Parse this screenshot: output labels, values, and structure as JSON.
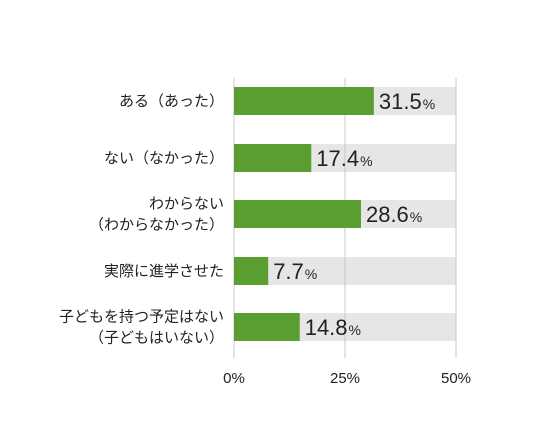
{
  "chart_data": {
    "type": "bar",
    "orientation": "horizontal",
    "categories": [
      [
        "ある（あった）"
      ],
      [
        "ない（なかった）"
      ],
      [
        "わからない",
        "（わからなかった）"
      ],
      [
        "実際に進学させた"
      ],
      [
        "子どもを持つ予定はない",
        "（子どもはいない）"
      ]
    ],
    "values": [
      31.5,
      17.4,
      28.6,
      7.7,
      14.8
    ],
    "value_labels": [
      "31.5",
      "17.4",
      "28.6",
      "7.7",
      "14.8"
    ],
    "value_unit": "%",
    "xlim": [
      0,
      50
    ],
    "x_ticks": [
      "0%",
      "25%",
      "50%"
    ],
    "x_tick_values": [
      0,
      25,
      50
    ],
    "bar_color": "#5a9e32",
    "track_color": "#e6e6e6",
    "grid": true
  }
}
